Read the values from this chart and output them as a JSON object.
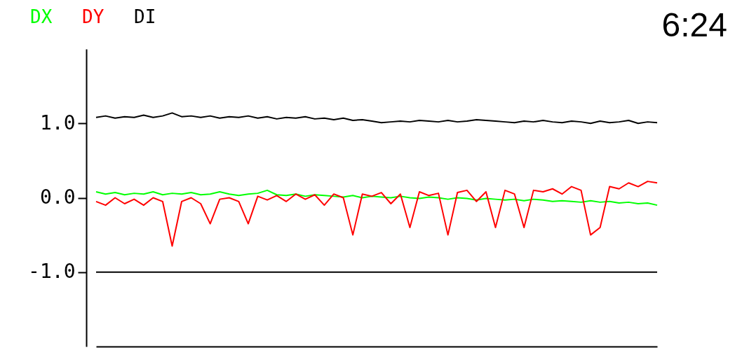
{
  "chart_data": {
    "type": "line",
    "title": "6:24",
    "categories": [
      null,
      null,
      null,
      null,
      null,
      null,
      null,
      null,
      null,
      null,
      null,
      null,
      null,
      null,
      null,
      null,
      null,
      null,
      null,
      null,
      null,
      null,
      null,
      null,
      null,
      null,
      null,
      null,
      null,
      null,
      null,
      null,
      null,
      null,
      null,
      null,
      null,
      null,
      null,
      null,
      null,
      null,
      null,
      null,
      null,
      null,
      null,
      null,
      null,
      null,
      null,
      null,
      null,
      null,
      null,
      null,
      null,
      null,
      null,
      null
    ],
    "series": [
      {
        "name": "DX",
        "color": "#00ff00",
        "values": [
          0.08,
          0.05,
          0.07,
          0.04,
          0.06,
          0.05,
          0.08,
          0.04,
          0.06,
          0.05,
          0.07,
          0.04,
          0.05,
          0.08,
          0.05,
          0.03,
          0.05,
          0.06,
          0.1,
          0.04,
          0.03,
          0.05,
          0.02,
          0.04,
          0.03,
          0.02,
          0.01,
          0.03,
          0.0,
          0.02,
          0.01,
          0.0,
          0.02,
          0.0,
          -0.01,
          0.01,
          0.0,
          -0.02,
          0.0,
          -0.01,
          -0.03,
          -0.01,
          -0.02,
          -0.03,
          -0.02,
          -0.04,
          -0.02,
          -0.03,
          -0.05,
          -0.04,
          -0.05,
          -0.06,
          -0.04,
          -0.06,
          -0.05,
          -0.07,
          -0.06,
          -0.08,
          -0.07,
          -0.1
        ]
      },
      {
        "name": "DY",
        "color": "#ff0000",
        "values": [
          -0.05,
          -0.1,
          0.0,
          -0.08,
          -0.02,
          -0.1,
          0.0,
          -0.05,
          -0.65,
          -0.05,
          0.0,
          -0.08,
          -0.35,
          -0.02,
          0.0,
          -0.05,
          -0.35,
          0.02,
          -0.03,
          0.03,
          -0.05,
          0.05,
          -0.02,
          0.04,
          -0.1,
          0.05,
          0.0,
          -0.5,
          0.05,
          0.02,
          0.07,
          -0.08,
          0.05,
          -0.4,
          0.08,
          0.03,
          0.06,
          -0.5,
          0.07,
          0.1,
          -0.05,
          0.08,
          -0.4,
          0.1,
          0.05,
          -0.4,
          0.1,
          0.08,
          0.12,
          0.05,
          0.15,
          0.1,
          -0.5,
          -0.4,
          0.15,
          0.12,
          0.2,
          0.15,
          0.22,
          0.2
        ]
      },
      {
        "name": "DI",
        "color": "#000000",
        "values": [
          1.08,
          1.1,
          1.07,
          1.09,
          1.08,
          1.11,
          1.08,
          1.1,
          1.14,
          1.09,
          1.1,
          1.08,
          1.1,
          1.07,
          1.09,
          1.08,
          1.1,
          1.07,
          1.09,
          1.06,
          1.08,
          1.07,
          1.09,
          1.06,
          1.07,
          1.05,
          1.07,
          1.04,
          1.05,
          1.03,
          1.01,
          1.02,
          1.03,
          1.02,
          1.04,
          1.03,
          1.02,
          1.04,
          1.02,
          1.03,
          1.05,
          1.04,
          1.03,
          1.02,
          1.01,
          1.03,
          1.02,
          1.04,
          1.02,
          1.01,
          1.03,
          1.02,
          1.0,
          1.03,
          1.01,
          1.02,
          1.04,
          1.0,
          1.02,
          1.01
        ]
      }
    ],
    "ylim": [
      -2,
      2
    ],
    "yticks": [
      {
        "value": 1,
        "label": "1.0"
      },
      {
        "value": 0,
        "label": "0.0"
      },
      {
        "value": -1,
        "label": "-1.0"
      }
    ],
    "ref_lines": [
      {
        "axis": "y",
        "value": -1,
        "label": null,
        "color": "#000000"
      }
    ],
    "tick_labels": "y",
    "grid": false,
    "legend": "top left"
  }
}
